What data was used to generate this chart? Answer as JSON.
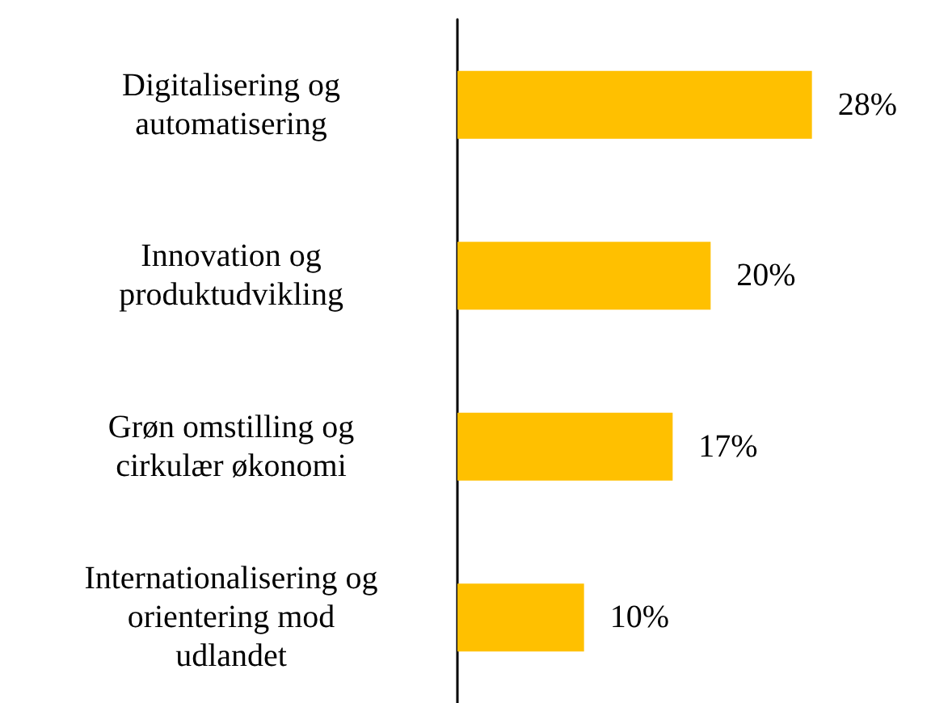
{
  "chart_data": {
    "type": "bar",
    "orientation": "horizontal",
    "categories": [
      "Digitalisering og\nautomatisering",
      "Innovation og\nproduktudvikling",
      "Grøn omstilling og\ncirkulær økonomi",
      "Internationalisering og\norientering mod\nudlandet"
    ],
    "values": [
      28,
      20,
      17,
      10
    ],
    "value_labels": [
      "28%",
      "20%",
      "17%",
      "10%"
    ],
    "color": "#ffc000"
  }
}
